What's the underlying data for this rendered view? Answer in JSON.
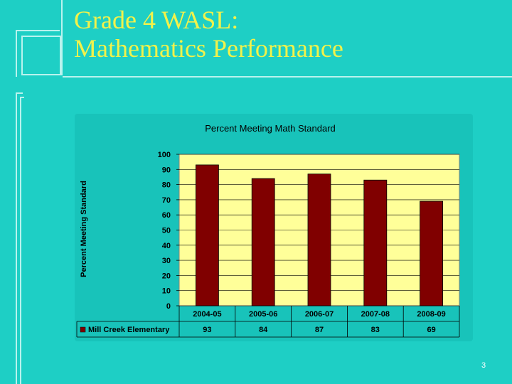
{
  "slide": {
    "title_line1": "Grade 4 WASL:",
    "title_line2": "Mathematics Performance",
    "page_number": "3"
  },
  "colors": {
    "background": "#1ecfc5",
    "title": "#f2f24a",
    "plot_area": "#ffff99",
    "bar": "#800000"
  },
  "chart_data": {
    "type": "bar",
    "title": "Percent Meeting Math Standard",
    "xlabel": "",
    "ylabel": "Percent Meeting Standard",
    "categories": [
      "2004-05",
      "2005-06",
      "2006-07",
      "2007-08",
      "2008-09"
    ],
    "series": [
      {
        "name": "Mill Creek Elementary",
        "values": [
          93,
          84,
          87,
          83,
          69
        ]
      }
    ],
    "ylim": [
      0,
      100
    ],
    "yticks": [
      0,
      10,
      20,
      30,
      40,
      50,
      60,
      70,
      80,
      90,
      100
    ],
    "grid": true,
    "legend": "data-table-left"
  }
}
